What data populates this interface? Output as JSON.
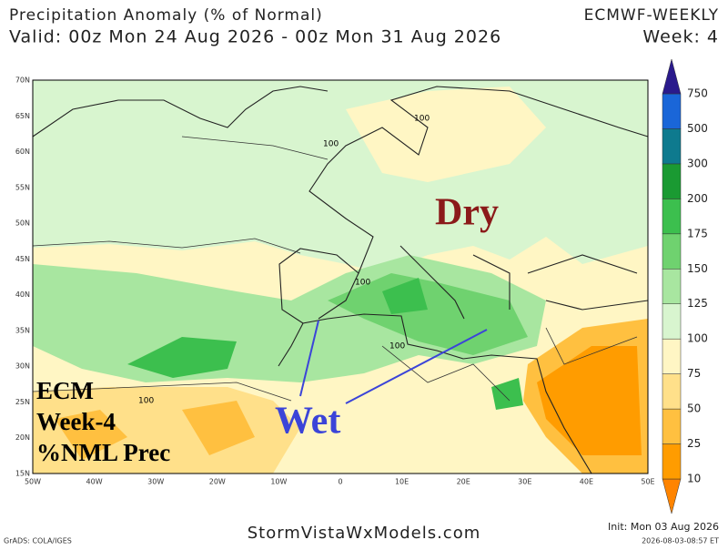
{
  "header": {
    "title": "Precipitation Anomaly (% of Normal)",
    "model": "ECMWF-WEEKLY",
    "valid": "Valid: 00z Mon 24 Aug 2026 - 00z Mon 31 Aug 2026",
    "week": "Week: 4"
  },
  "map": {
    "lat_labels": [
      "70N",
      "65N",
      "60N",
      "55N",
      "50N",
      "45N",
      "40N",
      "35N",
      "30N",
      "25N",
      "20N",
      "15N"
    ],
    "lon_labels": [
      "50W",
      "40W",
      "30W",
      "20W",
      "10W",
      "0",
      "10E",
      "20E",
      "30E",
      "40E",
      "50E"
    ],
    "contour_labels": [
      "100",
      "100",
      "100",
      "100",
      "100"
    ],
    "annotations": {
      "dry": "Dry",
      "wet": "Wet"
    },
    "caption": [
      "ECM",
      "Week-4",
      "%NML Prec"
    ]
  },
  "colorbar": {
    "levels": [
      10,
      25,
      50,
      75,
      100,
      125,
      150,
      175,
      200,
      300,
      500,
      750
    ],
    "colors": [
      "#ff8400",
      "#ff9c00",
      "#ffc040",
      "#ffe08a",
      "#fff6c4",
      "#d8f5cf",
      "#a8e6a0",
      "#6fd26f",
      "#3cbf4e",
      "#1a9a32",
      "#0e7a8e",
      "#1a66d8",
      "#0a22ff",
      "#2a1a8c"
    ]
  },
  "footer": {
    "grads": "GrADS: COLA/IGES",
    "site": "StormVistaWxModels.com",
    "init": "Init: Mon 03 Aug 2026",
    "stamp": "2026-08-03-08:57 ET"
  }
}
